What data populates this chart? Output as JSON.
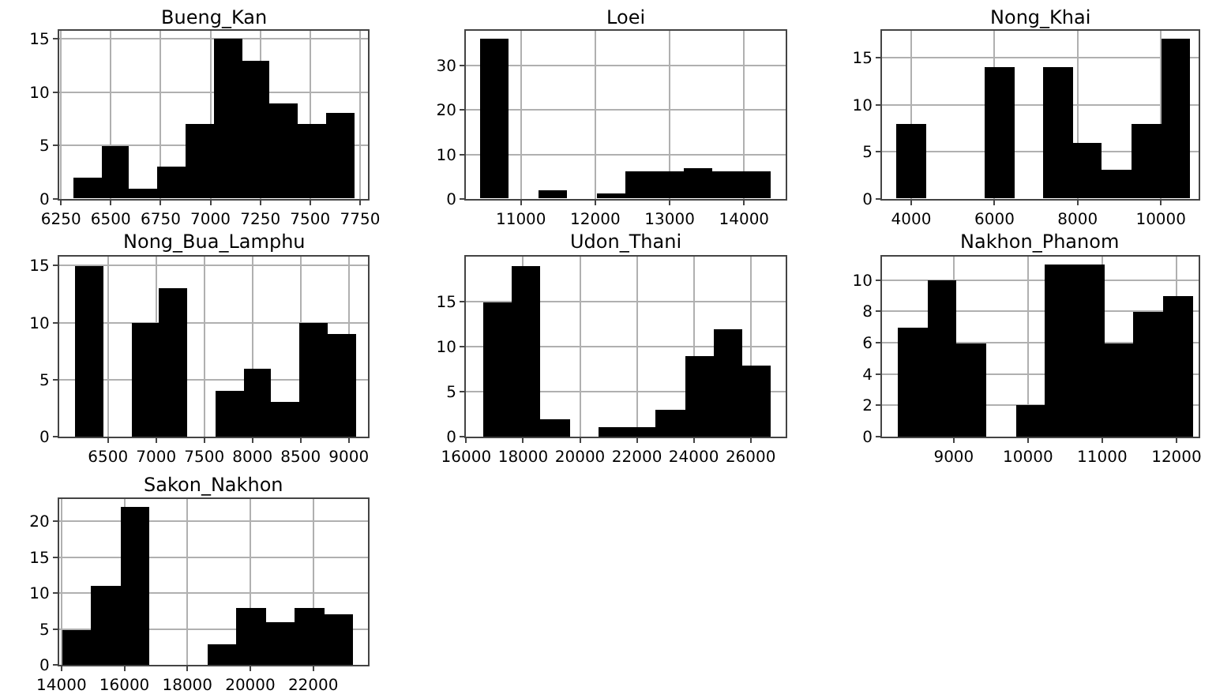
{
  "chart_data": [
    {
      "type": "histogram",
      "title": "Bueng_Kan",
      "bins": [
        6310,
        6451,
        6592,
        6733,
        6874,
        7015,
        7156,
        7297,
        7438,
        7579,
        7720
      ],
      "values": [
        2,
        5,
        1,
        3,
        7,
        15,
        13,
        9,
        7,
        8
      ],
      "color": "#000000",
      "xlim": [
        6240,
        7790
      ],
      "ylim": [
        0,
        15.75
      ],
      "xticks": [
        6250,
        6500,
        6750,
        7000,
        7250,
        7500,
        7750
      ],
      "yticks": [
        0,
        5,
        10,
        15
      ],
      "grid": true
    },
    {
      "type": "histogram",
      "title": "Loei",
      "bins": [
        10448,
        10839,
        11231,
        11622,
        12013,
        12405,
        12796,
        13187,
        13578,
        13970,
        14361
      ],
      "values": [
        36,
        0,
        2,
        0,
        1,
        6,
        6,
        7,
        6,
        6
      ],
      "color": "#000000",
      "xlim": [
        10260,
        14560
      ],
      "ylim": [
        0,
        37.8
      ],
      "xticks": [
        11000,
        12000,
        13000,
        14000
      ],
      "yticks": [
        0,
        10,
        20,
        30
      ],
      "grid": true
    },
    {
      "type": "histogram",
      "title": "Nong_Khai",
      "bins": [
        3654,
        4359,
        5064,
        5769,
        6474,
        7179,
        7884,
        8589,
        9294,
        9999,
        10704
      ],
      "values": [
        8,
        0,
        0,
        14,
        0,
        14,
        6,
        3,
        8,
        17
      ],
      "color": "#000000",
      "xlim": [
        3300,
        10910
      ],
      "ylim": [
        0,
        17.85
      ],
      "xticks": [
        4000,
        6000,
        8000,
        10000
      ],
      "yticks": [
        0,
        5,
        10,
        15
      ],
      "grid": true
    },
    {
      "type": "histogram",
      "title": "Nong_Bua_Lamphu",
      "bins": [
        6158,
        6449,
        6740,
        7030,
        7321,
        7612,
        7903,
        8194,
        8484,
        8775,
        9066
      ],
      "values": [
        15,
        0,
        10,
        13,
        0,
        4,
        6,
        3,
        10,
        9
      ],
      "color": "#000000",
      "xlim": [
        5990,
        9200
      ],
      "ylim": [
        0,
        15.8
      ],
      "xticks": [
        6500,
        7000,
        7500,
        8000,
        8500,
        9000
      ],
      "yticks": [
        0,
        5,
        10,
        15
      ],
      "grid": true
    },
    {
      "type": "histogram",
      "title": "Udon_Thani",
      "bins": [
        16600,
        17612,
        18625,
        19637,
        20649,
        21662,
        22674,
        23686,
        24698,
        25711,
        26723
      ],
      "values": [
        15,
        19,
        2,
        0,
        1,
        1,
        3,
        9,
        12,
        8
      ],
      "color": "#000000",
      "xlim": [
        15990,
        27230
      ],
      "ylim": [
        0,
        20
      ],
      "xticks": [
        16000,
        18000,
        20000,
        22000,
        24000,
        26000
      ],
      "yticks": [
        0,
        5,
        10,
        15
      ],
      "grid": true
    },
    {
      "type": "histogram",
      "title": "Nakhon_Phanom",
      "bins": [
        8243,
        8641,
        9039,
        9437,
        9835,
        10233,
        10630,
        11028,
        11426,
        11824,
        12222
      ],
      "values": [
        7,
        10,
        6,
        0,
        2,
        11,
        11,
        6,
        8,
        9
      ],
      "color": "#000000",
      "xlim": [
        8035,
        12300
      ],
      "ylim": [
        0,
        11.5
      ],
      "xticks": [
        9000,
        10000,
        11000,
        12000
      ],
      "yticks": [
        0,
        2,
        4,
        6,
        8,
        10
      ],
      "grid": true
    },
    {
      "type": "histogram",
      "title": "Sakon_Nakhon",
      "bins": [
        14000,
        14927,
        15854,
        16780,
        17707,
        18634,
        19561,
        20488,
        21414,
        22341,
        23268
      ],
      "values": [
        5,
        11,
        22,
        0,
        0,
        3,
        8,
        6,
        8,
        7
      ],
      "color": "#000000",
      "xlim": [
        13920,
        23740
      ],
      "ylim": [
        0,
        23.1
      ],
      "xticks": [
        14000,
        16000,
        18000,
        20000,
        22000
      ],
      "yticks": [
        0,
        5,
        10,
        15,
        20
      ],
      "grid": true
    }
  ]
}
